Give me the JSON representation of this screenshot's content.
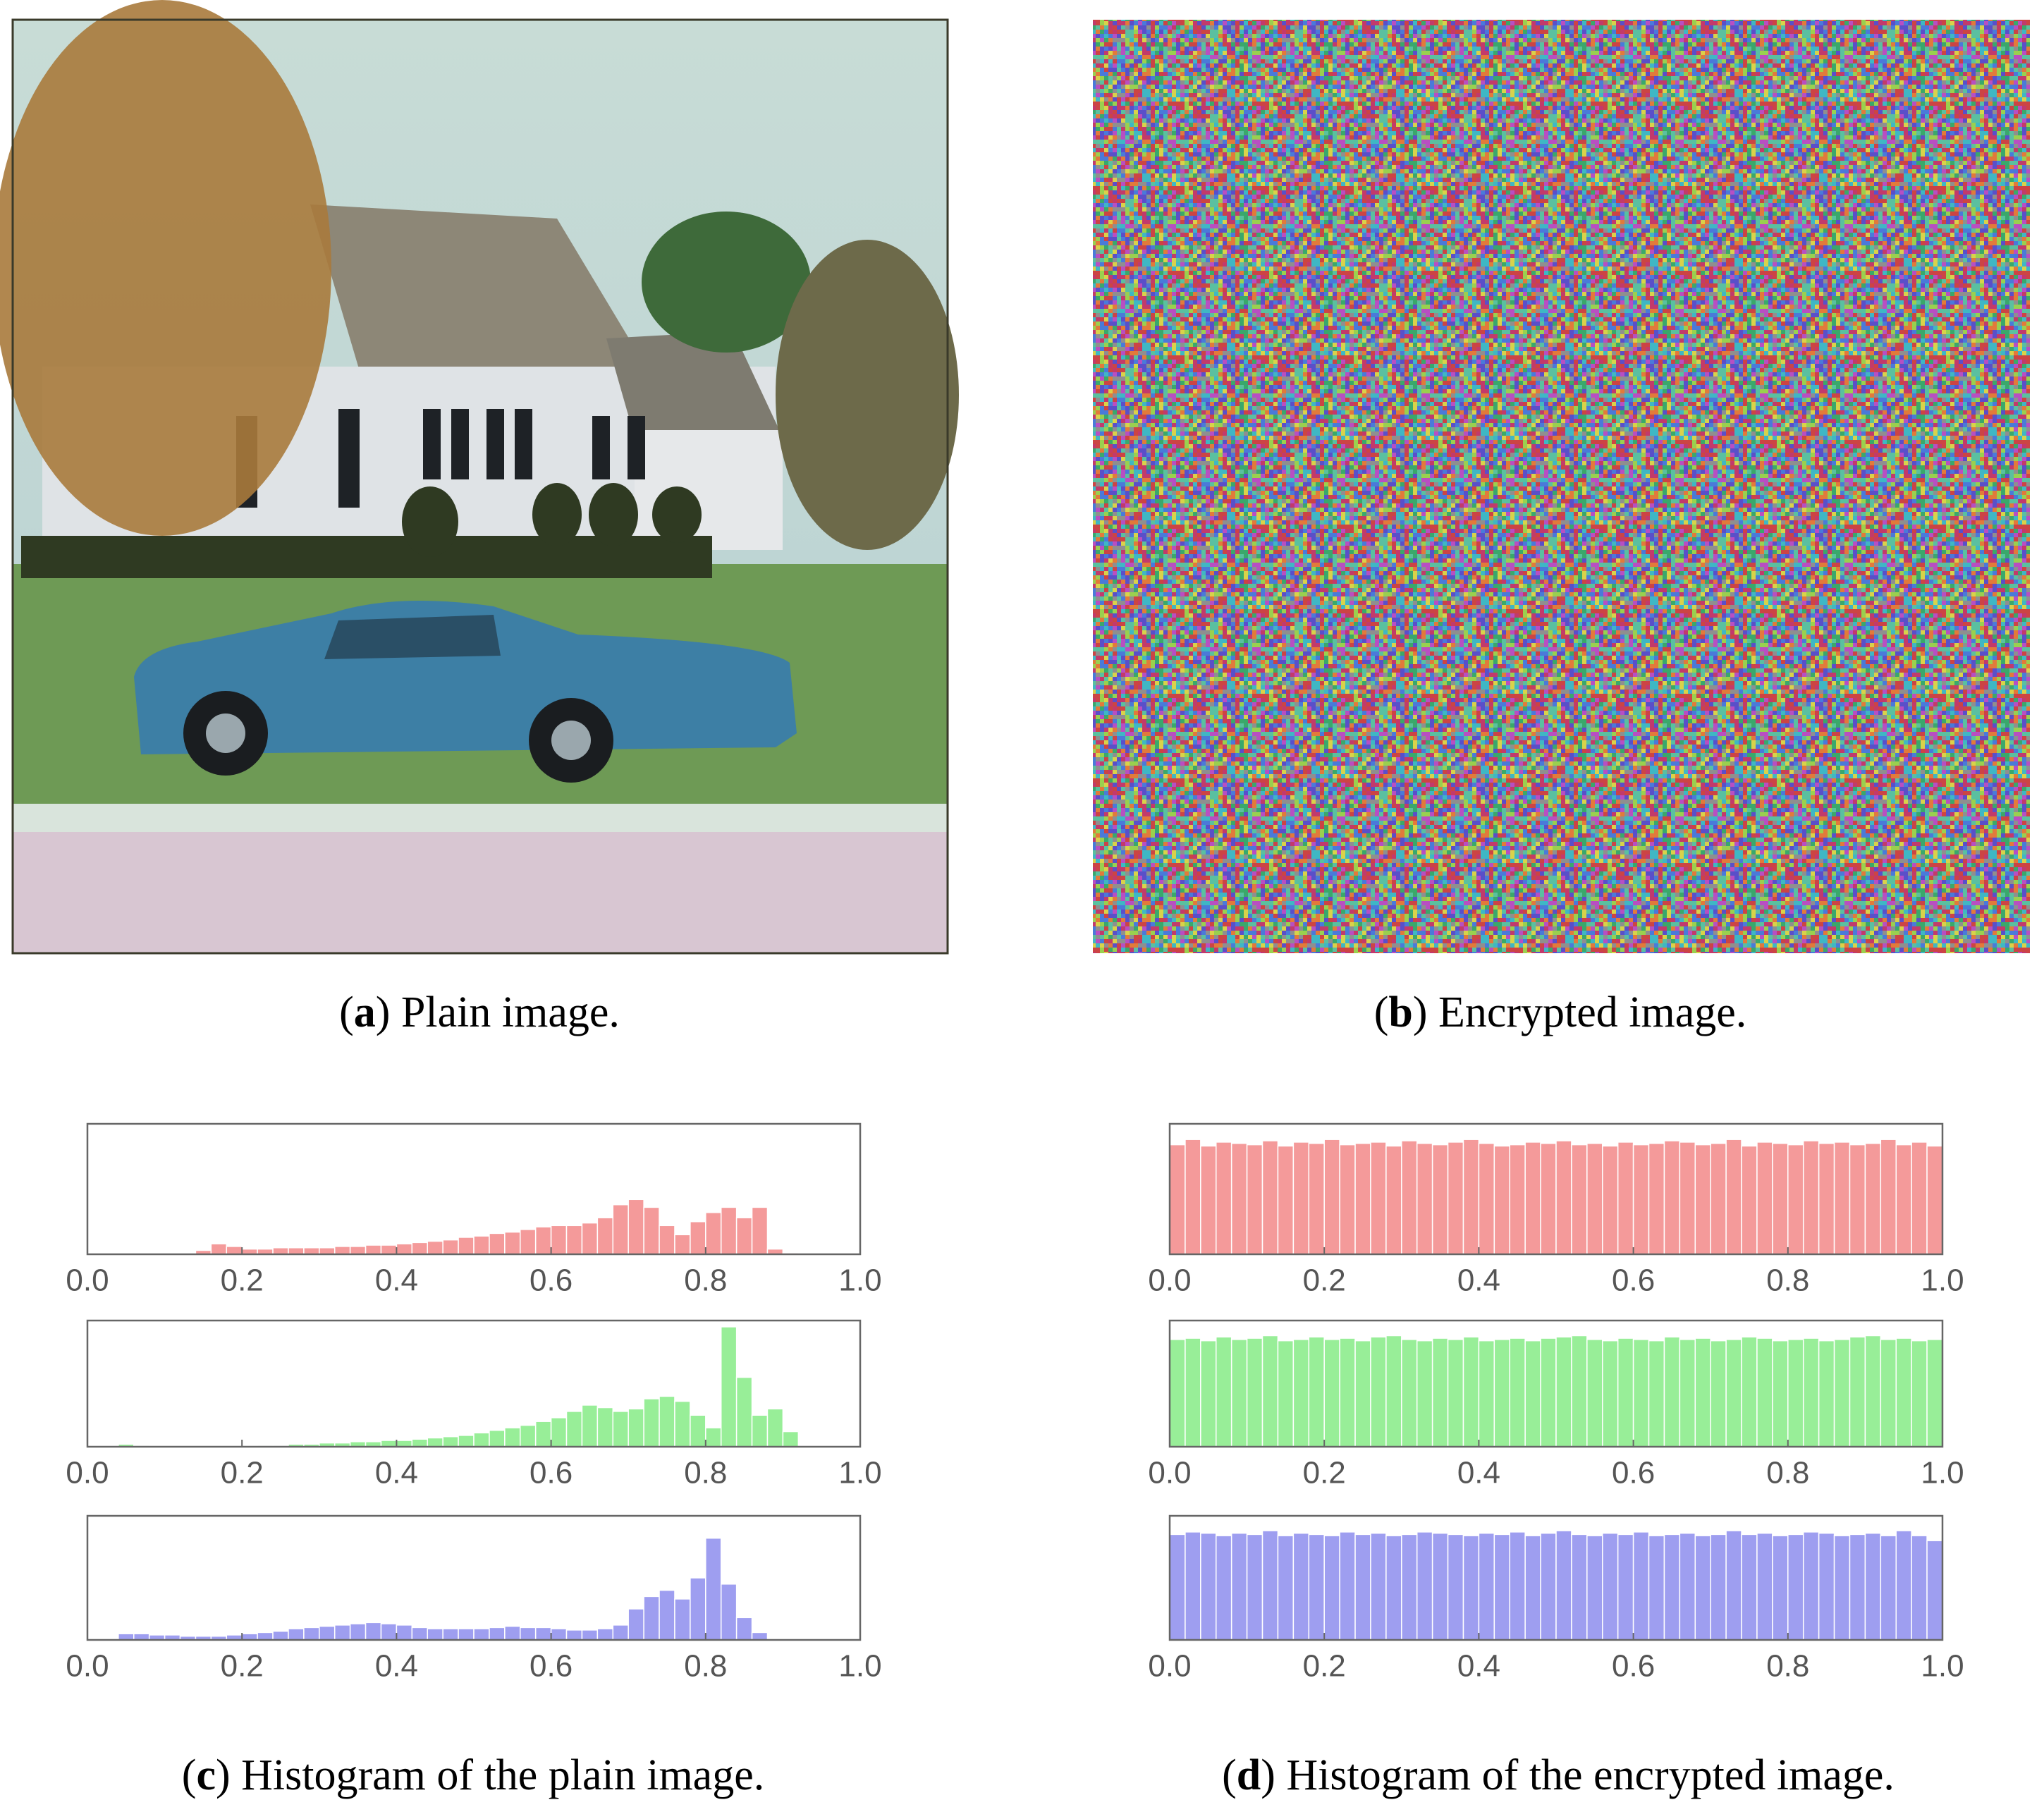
{
  "figure": {
    "captions": [
      [
        "(",
        "a",
        ") Plain image."
      ],
      [
        "(",
        "b",
        ") Encrypted image."
      ],
      [
        "(",
        "c",
        ") Histogram of the plain image."
      ],
      [
        "(",
        "d",
        ") Histogram of the encrypted image."
      ]
    ]
  },
  "chart_data": [
    {
      "type": "histogram",
      "color": "#f49a9a",
      "xlim": [
        0,
        1
      ],
      "ylim": [
        0,
        100
      ],
      "xticks": [
        {
          "value": 0,
          "label": "0.0"
        },
        0.2,
        0.4,
        0.6,
        0.8,
        {
          "value": 1,
          "label": "1.0"
        }
      ],
      "bins": [
        0,
        0.02,
        0.04,
        0.06,
        0.08,
        0.1,
        0.12,
        0.14,
        0.16,
        0.18,
        0.2,
        0.22,
        0.24,
        0.26,
        0.28,
        0.3,
        0.32,
        0.34,
        0.36,
        0.38,
        0.4,
        0.42,
        0.44,
        0.46,
        0.48,
        0.5,
        0.52,
        0.54,
        0.56,
        0.58,
        0.6,
        0.62,
        0.64,
        0.66,
        0.68,
        0.7,
        0.72,
        0.74,
        0.76,
        0.78,
        0.8,
        0.82,
        0.84,
        0.86,
        0.88,
        0.9,
        0.92,
        0.94,
        0.96,
        0.98,
        1
      ],
      "values": [
        0,
        0,
        0,
        0,
        0,
        0,
        0,
        3,
        8,
        6,
        4,
        4,
        5,
        5,
        5,
        5,
        6,
        6,
        7,
        7,
        8,
        9,
        10,
        11,
        13,
        14,
        16,
        17,
        19,
        21,
        22,
        22,
        24,
        28,
        38,
        42,
        36,
        22,
        15,
        25,
        32,
        36,
        28,
        36,
        4,
        1,
        0,
        0,
        0,
        0
      ]
    },
    {
      "type": "histogram",
      "color": "#98ee98",
      "xlim": [
        0,
        1
      ],
      "ylim": [
        0,
        100
      ],
      "xticks": [
        {
          "value": 0,
          "label": "0.0"
        },
        0.2,
        0.4,
        0.6,
        0.8,
        {
          "value": 1,
          "label": "1.0"
        }
      ],
      "bins": [
        0,
        0.02,
        0.04,
        0.06,
        0.08,
        0.1,
        0.12,
        0.14,
        0.16,
        0.18,
        0.2,
        0.22,
        0.24,
        0.26,
        0.28,
        0.3,
        0.32,
        0.34,
        0.36,
        0.38,
        0.4,
        0.42,
        0.44,
        0.46,
        0.48,
        0.5,
        0.52,
        0.54,
        0.56,
        0.58,
        0.6,
        0.62,
        0.64,
        0.66,
        0.68,
        0.7,
        0.72,
        0.74,
        0.76,
        0.78,
        0.8,
        0.82,
        0.84,
        0.86,
        0.88,
        0.9,
        0.92,
        0.94,
        0.96,
        0.98,
        1
      ],
      "values": [
        0,
        0,
        2,
        1,
        0,
        0,
        0,
        0,
        0,
        0,
        0,
        1,
        1,
        2,
        2,
        3,
        3,
        4,
        4,
        5,
        5,
        6,
        7,
        8,
        9,
        11,
        13,
        15,
        17,
        20,
        23,
        28,
        33,
        31,
        28,
        30,
        38,
        40,
        36,
        25,
        15,
        95,
        55,
        25,
        30,
        12,
        0,
        0,
        0,
        0
      ]
    },
    {
      "type": "histogram",
      "color": "#9e9ef0",
      "xlim": [
        0,
        1
      ],
      "ylim": [
        0,
        100
      ],
      "xticks": [
        {
          "value": 0,
          "label": "0.0"
        },
        0.2,
        0.4,
        0.6,
        0.8,
        {
          "value": 1,
          "label": "1.0"
        }
      ],
      "bins": [
        0,
        0.02,
        0.04,
        0.06,
        0.08,
        0.1,
        0.12,
        0.14,
        0.16,
        0.18,
        0.2,
        0.22,
        0.24,
        0.26,
        0.28,
        0.3,
        0.32,
        0.34,
        0.36,
        0.38,
        0.4,
        0.42,
        0.44,
        0.46,
        0.48,
        0.5,
        0.52,
        0.54,
        0.56,
        0.58,
        0.6,
        0.62,
        0.64,
        0.66,
        0.68,
        0.7,
        0.72,
        0.74,
        0.76,
        0.78,
        0.8,
        0.82,
        0.84,
        0.86,
        0.88,
        0.9,
        0.92,
        0.94,
        0.96,
        0.98,
        1
      ],
      "values": [
        0,
        0,
        5,
        5,
        4,
        4,
        3,
        3,
        3,
        4,
        5,
        6,
        7,
        9,
        10,
        11,
        12,
        13,
        14,
        13,
        12,
        10,
        9,
        9,
        9,
        9,
        10,
        11,
        10,
        10,
        9,
        8,
        8,
        9,
        12,
        25,
        35,
        40,
        33,
        50,
        82,
        45,
        18,
        6,
        0,
        0,
        0,
        0,
        0,
        0
      ]
    },
    {
      "type": "histogram",
      "color": "#f49a9a",
      "xlim": [
        0,
        1
      ],
      "ylim": [
        0,
        100
      ],
      "xticks": [
        {
          "value": 0,
          "label": "0.0"
        },
        0.2,
        0.4,
        0.6,
        0.8,
        {
          "value": 1,
          "label": "1.0"
        }
      ],
      "bins": [
        0,
        0.02,
        0.04,
        0.06,
        0.08,
        0.1,
        0.12,
        0.14,
        0.16,
        0.18,
        0.2,
        0.22,
        0.24,
        0.26,
        0.28,
        0.3,
        0.32,
        0.34,
        0.36,
        0.38,
        0.4,
        0.42,
        0.44,
        0.46,
        0.48,
        0.5,
        0.52,
        0.54,
        0.56,
        0.58,
        0.6,
        0.62,
        0.64,
        0.66,
        0.68,
        0.7,
        0.72,
        0.74,
        0.76,
        0.78,
        0.8,
        0.82,
        0.84,
        0.86,
        0.88,
        0.9,
        0.92,
        0.94,
        0.96,
        0.98,
        1
      ],
      "values": [
        84,
        88,
        83,
        86,
        85,
        84,
        87,
        83,
        86,
        85,
        88,
        84,
        85,
        86,
        83,
        87,
        85,
        84,
        86,
        88,
        85,
        83,
        84,
        86,
        85,
        87,
        84,
        85,
        83,
        86,
        84,
        85,
        87,
        86,
        84,
        85,
        88,
        83,
        86,
        85,
        84,
        87,
        85,
        86,
        84,
        85,
        88,
        84,
        86,
        83
      ]
    },
    {
      "type": "histogram",
      "color": "#98ee98",
      "xlim": [
        0,
        1
      ],
      "ylim": [
        0,
        100
      ],
      "xticks": [
        {
          "value": 0,
          "label": "0.0"
        },
        0.2,
        0.4,
        0.6,
        0.8,
        {
          "value": 1,
          "label": "1.0"
        }
      ],
      "bins": [
        0,
        0.02,
        0.04,
        0.06,
        0.08,
        0.1,
        0.12,
        0.14,
        0.16,
        0.18,
        0.2,
        0.22,
        0.24,
        0.26,
        0.28,
        0.3,
        0.32,
        0.34,
        0.36,
        0.38,
        0.4,
        0.42,
        0.44,
        0.46,
        0.48,
        0.5,
        0.52,
        0.54,
        0.56,
        0.58,
        0.6,
        0.62,
        0.64,
        0.66,
        0.68,
        0.7,
        0.72,
        0.74,
        0.76,
        0.78,
        0.8,
        0.82,
        0.84,
        0.86,
        0.88,
        0.9,
        0.92,
        0.94,
        0.96,
        0.98,
        1
      ],
      "values": [
        85,
        86,
        84,
        87,
        85,
        86,
        88,
        84,
        85,
        87,
        85,
        86,
        84,
        87,
        88,
        85,
        84,
        86,
        85,
        87,
        84,
        85,
        86,
        84,
        86,
        87,
        88,
        85,
        84,
        86,
        85,
        84,
        87,
        85,
        86,
        84,
        85,
        87,
        86,
        84,
        85,
        86,
        84,
        85,
        87,
        88,
        85,
        86,
        84,
        85
      ]
    },
    {
      "type": "histogram",
      "color": "#9e9ef0",
      "xlim": [
        0,
        1
      ],
      "ylim": [
        0,
        100
      ],
      "xticks": [
        {
          "value": 0,
          "label": "0.0"
        },
        0.2,
        0.4,
        0.6,
        0.8,
        {
          "value": 1,
          "label": "1.0"
        }
      ],
      "bins": [
        0,
        0.02,
        0.04,
        0.06,
        0.08,
        0.1,
        0.12,
        0.14,
        0.16,
        0.18,
        0.2,
        0.22,
        0.24,
        0.26,
        0.28,
        0.3,
        0.32,
        0.34,
        0.36,
        0.38,
        0.4,
        0.42,
        0.44,
        0.46,
        0.48,
        0.5,
        0.52,
        0.54,
        0.56,
        0.58,
        0.6,
        0.62,
        0.64,
        0.66,
        0.68,
        0.7,
        0.72,
        0.74,
        0.76,
        0.78,
        0.8,
        0.82,
        0.84,
        0.86,
        0.88,
        0.9,
        0.92,
        0.94,
        0.96,
        0.98,
        1
      ],
      "values": [
        85,
        87,
        86,
        84,
        86,
        85,
        88,
        84,
        86,
        85,
        84,
        87,
        85,
        86,
        84,
        85,
        87,
        86,
        85,
        84,
        86,
        85,
        87,
        84,
        86,
        88,
        85,
        84,
        86,
        85,
        87,
        84,
        85,
        86,
        84,
        85,
        88,
        85,
        86,
        84,
        85,
        87,
        86,
        84,
        85,
        86,
        84,
        88,
        84,
        80
      ]
    }
  ]
}
